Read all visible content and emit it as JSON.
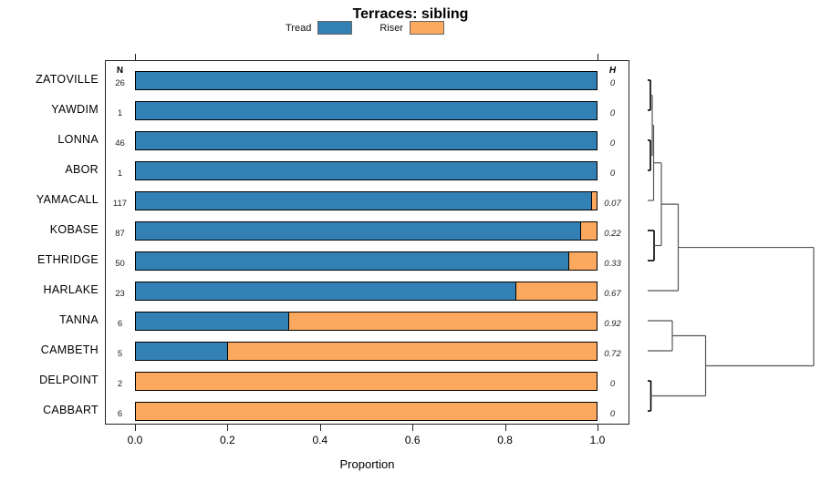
{
  "title": "Terraces: sibling",
  "legend": {
    "items": [
      {
        "label": "Tread",
        "color": "#3380B5"
      },
      {
        "label": "Riser",
        "color": "#FCA85E"
      }
    ]
  },
  "columns": {
    "n_header": "N",
    "h_header": "H"
  },
  "axis": {
    "xlabel": "Proportion",
    "ticks": [
      "0.0",
      "0.2",
      "0.4",
      "0.6",
      "0.8",
      "1.0"
    ]
  },
  "chart_data": {
    "type": "bar",
    "stacked": true,
    "orientation": "horizontal",
    "title": "Terraces: sibling",
    "xlabel": "Proportion",
    "xlim": [
      0,
      1
    ],
    "legend_position": "top",
    "grid": false,
    "categories": [
      "ZATOVILLE",
      "YAWDIM",
      "LONNA",
      "ABOR",
      "YAMACALL",
      "KOBASE",
      "ETHRIDGE",
      "HARLAKE",
      "TANNA",
      "CAMBETH",
      "DELPOINT",
      "CABBART"
    ],
    "n_values": [
      "26",
      "1",
      "46",
      "1",
      "117",
      "87",
      "50",
      "23",
      "6",
      "5",
      "2",
      "6"
    ],
    "h_values": [
      "0",
      "0",
      "0",
      "0",
      "0.07",
      "0.22",
      "0.33",
      "0.67",
      "0.92",
      "0.72",
      "0",
      "0"
    ],
    "series": [
      {
        "name": "Tread",
        "color": "#3380B5",
        "values": [
          1,
          1,
          1,
          1,
          0.991,
          0.966,
          0.94,
          0.826,
          0.333,
          0.2,
          0,
          0
        ]
      },
      {
        "name": "Riser",
        "color": "#FCA85E",
        "values": [
          0,
          0,
          0,
          0,
          0.009,
          0.034,
          0.06,
          0.174,
          0.667,
          0.8,
          1,
          1
        ]
      }
    ],
    "dendrogram": {
      "note": "right-side hclust tree; h=relative merge height 0..1, r=row index (0-based, fractional = cluster midpoint)",
      "segments": [
        [
          "h",
          0,
          0,
          0.0165,
          1
        ],
        [
          "h",
          1,
          0,
          0.0165,
          1
        ],
        [
          "v",
          0.0165,
          0,
          1,
          1
        ],
        [
          "h",
          2,
          0,
          0.0165,
          1
        ],
        [
          "h",
          3,
          0,
          0.0165,
          1
        ],
        [
          "v",
          0.0165,
          2,
          3,
          1
        ],
        [
          "h",
          0.5,
          0.0165,
          0.0275,
          0
        ],
        [
          "h",
          2.5,
          0.0165,
          0.0275,
          0
        ],
        [
          "v",
          0.0275,
          0.5,
          2.5,
          0
        ],
        [
          "h",
          1.5,
          0.0275,
          0.0357,
          0
        ],
        [
          "h",
          4,
          0,
          0.0357,
          0
        ],
        [
          "v",
          0.0357,
          1.5,
          4,
          0
        ],
        [
          "h",
          5,
          0,
          0.0385,
          1
        ],
        [
          "h",
          6,
          0,
          0.0385,
          1
        ],
        [
          "v",
          0.0385,
          5,
          6,
          1
        ],
        [
          "h",
          2.75,
          0.0357,
          0.0824,
          0
        ],
        [
          "h",
          5.5,
          0.0385,
          0.0824,
          0
        ],
        [
          "v",
          0.0824,
          2.75,
          5.5,
          0
        ],
        [
          "h",
          4.125,
          0.0824,
          0.184,
          0
        ],
        [
          "h",
          7,
          0,
          0.184,
          0
        ],
        [
          "v",
          0.184,
          4.125,
          7,
          0
        ],
        [
          "h",
          8,
          0,
          0.1484,
          0
        ],
        [
          "h",
          9,
          0,
          0.1484,
          0
        ],
        [
          "v",
          0.1484,
          8,
          9,
          0
        ],
        [
          "h",
          10,
          0,
          0.0192,
          1
        ],
        [
          "h",
          11,
          0,
          0.0192,
          1
        ],
        [
          "v",
          0.0192,
          10,
          11,
          1
        ],
        [
          "h",
          8.5,
          0.1484,
          0.349,
          0
        ],
        [
          "h",
          10.5,
          0.0192,
          0.349,
          0
        ],
        [
          "v",
          0.349,
          8.5,
          10.5,
          0
        ],
        [
          "h",
          5.5625,
          0.184,
          1,
          0
        ],
        [
          "h",
          9.5,
          0.349,
          1,
          0
        ],
        [
          "v",
          1,
          5.5625,
          9.5,
          0
        ]
      ]
    }
  }
}
